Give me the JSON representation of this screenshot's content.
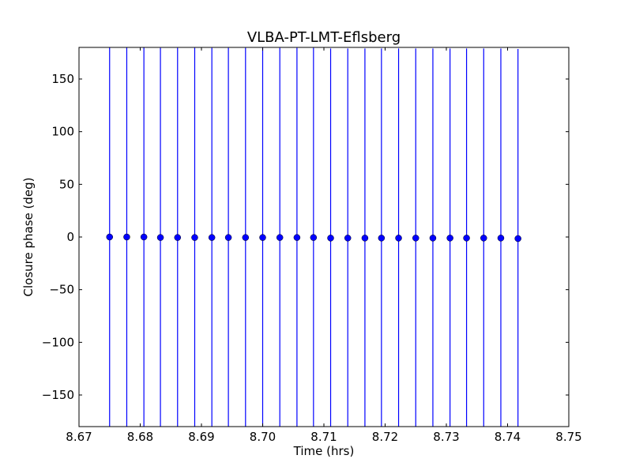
{
  "chart_data": {
    "type": "scatter",
    "title": "VLBA-PT-LMT-Eflsberg",
    "xlabel": "Time (hrs)",
    "ylabel": "Closure phase (deg)",
    "xlim": [
      8.67,
      8.75
    ],
    "ylim": [
      -180,
      180
    ],
    "xticks": [
      8.67,
      8.68,
      8.69,
      8.7,
      8.71,
      8.72,
      8.73,
      8.74,
      8.75
    ],
    "xtick_labels": [
      "8.67",
      "8.68",
      "8.69",
      "8.70",
      "8.71",
      "8.72",
      "8.73",
      "8.74",
      "8.75"
    ],
    "yticks": [
      -150,
      -100,
      -50,
      0,
      50,
      100,
      150
    ],
    "ytick_labels": [
      "−150",
      "−100",
      "−50",
      "0",
      "50",
      "100",
      "150"
    ],
    "grid": false,
    "legend": false,
    "marker_color": "#0000ff",
    "errorbar_color": "#0000ff",
    "series": [
      {
        "x": [
          8.675,
          8.6778,
          8.6806,
          8.6833,
          8.6861,
          8.6889,
          8.6917,
          8.6944,
          8.6972,
          8.7,
          8.7028,
          8.7056,
          8.7083,
          8.7111,
          8.7139,
          8.7167,
          8.7194,
          8.7222,
          8.725,
          8.7278,
          8.7306,
          8.7333,
          8.7361,
          8.7389,
          8.7417
        ],
        "y": [
          0.0,
          0.0,
          0.0,
          -0.5,
          -0.5,
          -0.5,
          -0.5,
          -0.5,
          -0.5,
          -0.5,
          -0.5,
          -0.5,
          -0.5,
          -1.0,
          -1.0,
          -1.0,
          -1.0,
          -1.0,
          -1.0,
          -1.0,
          -1.0,
          -1.0,
          -1.0,
          -1.0,
          -1.5
        ],
        "yerr": [
          180,
          180,
          180,
          180,
          180,
          180,
          180,
          180,
          180,
          180,
          180,
          180,
          180,
          180,
          180,
          180,
          180,
          180,
          180,
          180,
          180,
          180,
          180,
          180,
          180
        ]
      }
    ]
  }
}
